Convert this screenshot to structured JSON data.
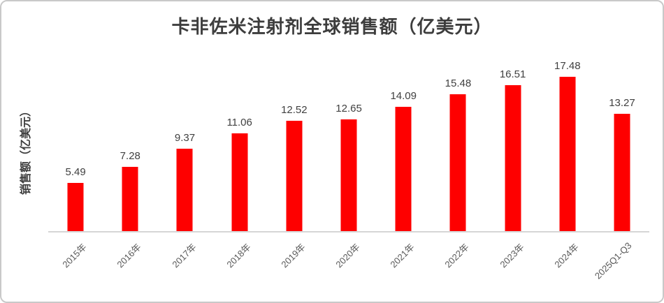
{
  "frame": {
    "background": "#ffffff",
    "border_color": "#c9c9c9"
  },
  "chart_data": {
    "type": "bar",
    "title": "卡非佐米注射剂全球销售额（亿美元）",
    "ylabel": "销售额（亿美元）",
    "xlabel": "",
    "categories": [
      "2015年",
      "2016年",
      "2017年",
      "2018年",
      "2019年",
      "2020年",
      "2021年",
      "2022年",
      "2023年",
      "2024年",
      "2025Q1-Q3"
    ],
    "values": [
      5.49,
      7.28,
      9.37,
      11.06,
      12.52,
      12.65,
      14.09,
      15.48,
      16.51,
      17.48,
      13.27
    ],
    "value_labels_shown": true,
    "ylim": [
      0,
      20
    ],
    "grid": false,
    "legend_position": "none",
    "bar_color": "#fe0000",
    "data_label_color": "#404040",
    "title_color": "#3d3d3d",
    "tick_label_color": "#595959",
    "axis_line_color": "#d6d6d6"
  }
}
